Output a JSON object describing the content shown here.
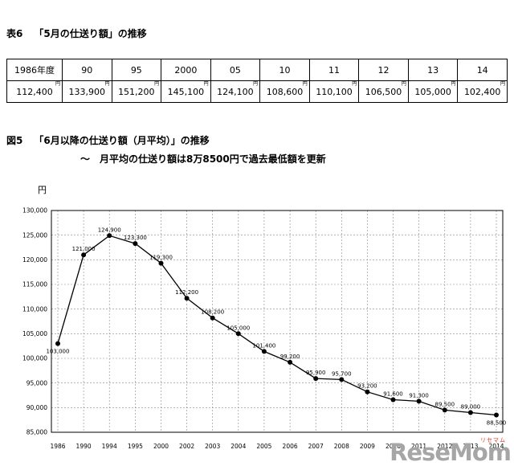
{
  "page": {
    "table_label": "表6",
    "table_title": "「5月の仕送り額」の推移",
    "figure_label": "図5",
    "figure_title": "「6月以降の仕送り額（月平均）」の推移",
    "figure_subtitle": "～　月平均の仕送り額は8万8500円で過去最低額を更新"
  },
  "table": {
    "unit": "円",
    "headers": [
      "1986年度",
      "90",
      "95",
      "2000",
      "05",
      "10",
      "11",
      "12",
      "13",
      "14"
    ],
    "values": [
      "112,400",
      "133,900",
      "151,200",
      "145,100",
      "124,100",
      "108,600",
      "110,100",
      "106,500",
      "105,000",
      "102,400"
    ]
  },
  "chart_data": {
    "type": "line",
    "title": "「6月以降の仕送り額（月平均）」の推移",
    "ylabel": "円",
    "xlabel": "",
    "ylim": [
      85000,
      130000
    ],
    "ytick_step": 5000,
    "yticks": [
      "130,000",
      "125,000",
      "120,000",
      "115,000",
      "110,000",
      "105,000",
      "100,000",
      "95,000",
      "90,000",
      "85,000"
    ],
    "grid": "dashed, both directions",
    "legend_position": "none",
    "line_color": "#000000",
    "marker": "filled-circle",
    "x": [
      "1986",
      "1990",
      "1994",
      "1995",
      "2000",
      "2002",
      "2003",
      "2004",
      "2005",
      "2006",
      "2007",
      "2008",
      "2009",
      "2010",
      "2011",
      "2012",
      "2013",
      "2014"
    ],
    "values": [
      103000,
      121000,
      124900,
      123300,
      119300,
      112200,
      108200,
      105000,
      101400,
      99200,
      95900,
      95700,
      93200,
      91600,
      91300,
      89500,
      89000,
      88500
    ],
    "point_labels": [
      "103,000",
      "121,000",
      "124,900",
      "123,300",
      "119,300",
      "112,200",
      "108,200",
      "105,000",
      "101,400",
      "99,200",
      "95,900",
      "95,700",
      "93,200",
      "91,600",
      "91,300",
      "89,500",
      "89,000",
      "88,500"
    ],
    "label_below_indices": [
      0,
      17
    ]
  },
  "watermark": {
    "logo": "ReseMom",
    "sub": "リセマム"
  }
}
